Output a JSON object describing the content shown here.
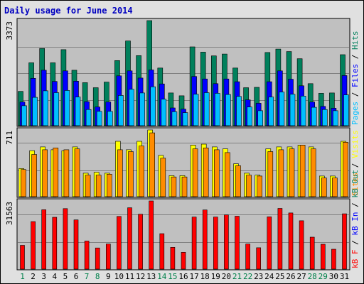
{
  "chart_data": {
    "type": "bar",
    "title": "Daily usage for June 2014",
    "title_color": "#0000c0",
    "background": "#e0e0e0",
    "plot_background": "#c0c0c0",
    "categories": [
      "1",
      "2",
      "3",
      "4",
      "5",
      "6",
      "7",
      "8",
      "9",
      "10",
      "11",
      "12",
      "13",
      "14",
      "15",
      "16",
      "17",
      "18",
      "19",
      "20",
      "21",
      "22",
      "23",
      "24",
      "25",
      "26",
      "27",
      "28",
      "29",
      "30",
      "31"
    ],
    "weekend_days": [
      "1",
      "7",
      "8",
      "14",
      "15",
      "21",
      "22",
      "28",
      "29"
    ],
    "weekend_color": "#00804a",
    "weekday_color": "#000000",
    "panels": [
      {
        "id": "hits-files-pages",
        "ymax_label": "3373",
        "ymax": 3373,
        "series": [
          {
            "name": "Hits",
            "color": "#00805c",
            "values": [
              1100,
              2020,
              2480,
              2020,
              2440,
              1780,
              1380,
              1220,
              1400,
              2090,
              2720,
              2250,
              3373,
              1850,
              1050,
              960,
              2530,
              2360,
              2240,
              2300,
              1850,
              1220,
              1230,
              2350,
              2460,
              2380,
              2150,
              1350,
              1040,
              1050,
              2280
            ]
          },
          {
            "name": "Files",
            "color": "#0000ff",
            "values": [
              760,
              1520,
              1780,
              1420,
              1760,
              1430,
              770,
              600,
              760,
              1600,
              1760,
              1530,
              1790,
              1340,
              570,
              530,
              1580,
              1500,
              1350,
              1500,
              1410,
              830,
              720,
              1410,
              1760,
              1490,
              1280,
              760,
              620,
              560,
              1610
            ]
          },
          {
            "name": "Pages",
            "color": "#00bfff",
            "values": [
              640,
              910,
              1120,
              1060,
              1130,
              920,
              520,
              460,
              460,
              970,
              1170,
              1050,
              1250,
              850,
              450,
              420,
              1010,
              1060,
              1040,
              1000,
              940,
              600,
              480,
              920,
              1080,
              1010,
              950,
              590,
              520,
              480,
              990
            ]
          }
        ],
        "side_label": [
          {
            "text": "Pages",
            "color": "#00bfff"
          },
          {
            "text": " / ",
            "color": "#000000"
          },
          {
            "text": "Files",
            "color": "#0000ff"
          },
          {
            "text": " / ",
            "color": "#000000"
          },
          {
            "text": "Hits",
            "color": "#00805c"
          }
        ]
      },
      {
        "id": "visits-sites",
        "ymax_label": "711",
        "ymax": 711,
        "series": [
          {
            "name": "Visits",
            "color": "#ffff00",
            "values": [
              300,
              490,
              530,
              500,
              490,
              530,
              250,
              260,
              250,
              590,
              500,
              590,
              711,
              440,
              225,
              225,
              550,
              560,
              530,
              510,
              350,
              250,
              230,
              510,
              530,
              530,
              550,
              530,
              220,
              220,
              590
            ]
          },
          {
            "name": "Sites",
            "color": "#ff8c00",
            "values": [
              290,
              450,
              500,
              520,
              500,
              510,
              230,
              230,
              240,
              500,
              480,
              540,
              680,
              410,
              210,
              210,
              510,
              520,
              500,
              470,
              330,
              230,
              220,
              480,
              500,
              510,
              550,
              510,
              200,
              200,
              580
            ]
          }
        ],
        "side_label": [
          {
            "text": "Sites",
            "color": "#ff8c00"
          },
          {
            "text": " / ",
            "color": "#000000"
          },
          {
            "text": "Visits",
            "color": "#ffff00"
          }
        ]
      },
      {
        "id": "kbytes",
        "ymax_label": "31563",
        "ymax": 31563,
        "series": [
          {
            "name": "kB F",
            "color": "#ff0000",
            "values": [
              11000,
              22000,
              27500,
              24000,
              28000,
              22800,
              13000,
              9800,
              11600,
              24400,
              28400,
              25400,
              31563,
              16400,
              10100,
              7800,
              24100,
              27400,
              24100,
              25100,
              24500,
              11600,
              9900,
              24200,
              28100,
              26000,
              22400,
              14800,
              11500,
              9200,
              25600
            ]
          }
        ],
        "side_label": [
          {
            "text": "kB F",
            "color": "#ff0000"
          },
          {
            "text": " / ",
            "color": "#000000"
          },
          {
            "text": "kB In",
            "color": "#0000ff"
          },
          {
            "text": " / ",
            "color": "#000000"
          },
          {
            "text": "kB Out",
            "color": "#00805c"
          }
        ]
      }
    ]
  }
}
